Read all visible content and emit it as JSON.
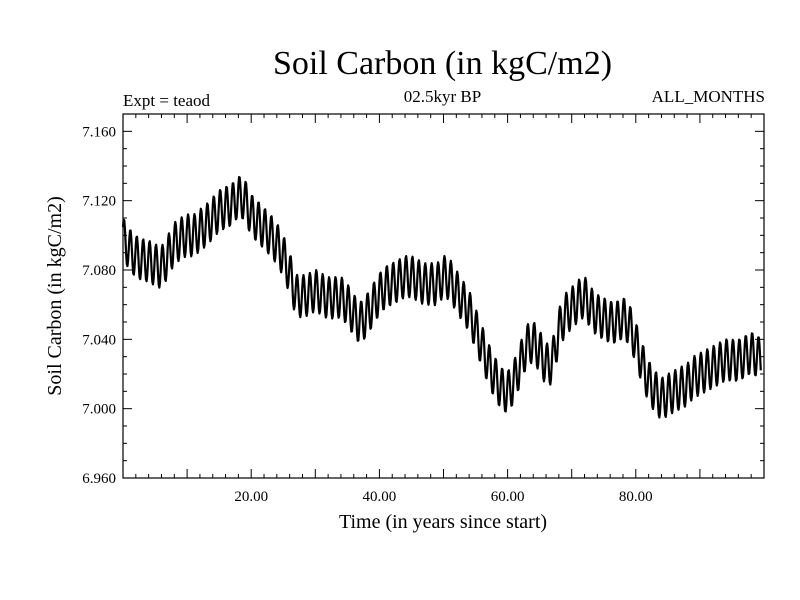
{
  "chart_data": {
    "type": "line",
    "title": "Soil Carbon (in kgC/m2)",
    "left_annotation": "Expt = teaod",
    "center_annotation": "02.5kyr BP",
    "right_annotation": "ALL_MONTHS",
    "xlabel": "Time (in years since start)",
    "ylabel": "Soil Carbon (in kgC/m2)",
    "xlim": [
      0,
      100
    ],
    "ylim": [
      6.96,
      7.17
    ],
    "xticks": [
      20,
      40,
      60,
      80
    ],
    "xtick_labels": [
      "20.00",
      "40.00",
      "60.00",
      "80.00"
    ],
    "yticks": [
      6.96,
      7.0,
      7.04,
      7.08,
      7.12,
      7.16
    ],
    "ytick_labels": [
      "6.960",
      "7.000",
      "7.040",
      "7.080",
      "7.120",
      "7.160"
    ],
    "seasonal_amplitude": 0.012,
    "series": [
      {
        "name": "Soil Carbon",
        "x": [
          0,
          1,
          2,
          3,
          4,
          5,
          6,
          7,
          8,
          9,
          10,
          11,
          12,
          13,
          14,
          15,
          16,
          17,
          18,
          19,
          20,
          21,
          22,
          23,
          24,
          25,
          26,
          27,
          28,
          29,
          30,
          31,
          32,
          33,
          34,
          35,
          36,
          37,
          38,
          39,
          40,
          41,
          42,
          43,
          44,
          45,
          46,
          47,
          48,
          49,
          50,
          51,
          52,
          53,
          54,
          55,
          56,
          57,
          58,
          59,
          60,
          61,
          62,
          63,
          64,
          65,
          66,
          67,
          68,
          69,
          70,
          71,
          72,
          73,
          74,
          75,
          76,
          77,
          78,
          79,
          80,
          81,
          82,
          83,
          84,
          85,
          86,
          87,
          88,
          89,
          90,
          91,
          92,
          93,
          94,
          95,
          96,
          97,
          98,
          99,
          100
        ],
        "y": [
          7.098,
          7.092,
          7.088,
          7.086,
          7.085,
          7.083,
          7.082,
          7.088,
          7.095,
          7.098,
          7.1,
          7.1,
          7.103,
          7.106,
          7.11,
          7.114,
          7.116,
          7.118,
          7.122,
          7.12,
          7.112,
          7.108,
          7.104,
          7.1,
          7.095,
          7.088,
          7.078,
          7.066,
          7.065,
          7.066,
          7.068,
          7.066,
          7.064,
          7.064,
          7.064,
          7.06,
          7.054,
          7.05,
          7.054,
          7.06,
          7.066,
          7.07,
          7.072,
          7.074,
          7.076,
          7.076,
          7.074,
          7.072,
          7.072,
          7.072,
          7.076,
          7.074,
          7.068,
          7.062,
          7.056,
          7.046,
          7.036,
          7.026,
          7.018,
          7.012,
          7.01,
          7.016,
          7.026,
          7.036,
          7.038,
          7.033,
          7.026,
          7.028,
          7.045,
          7.054,
          7.058,
          7.062,
          7.064,
          7.058,
          7.054,
          7.052,
          7.05,
          7.05,
          7.052,
          7.048,
          7.038,
          7.026,
          7.016,
          7.01,
          7.006,
          7.008,
          7.01,
          7.012,
          7.014,
          7.018,
          7.02,
          7.022,
          7.024,
          7.026,
          7.028,
          7.028,
          7.028,
          7.03,
          7.032,
          7.03,
          7.028
        ]
      }
    ]
  }
}
